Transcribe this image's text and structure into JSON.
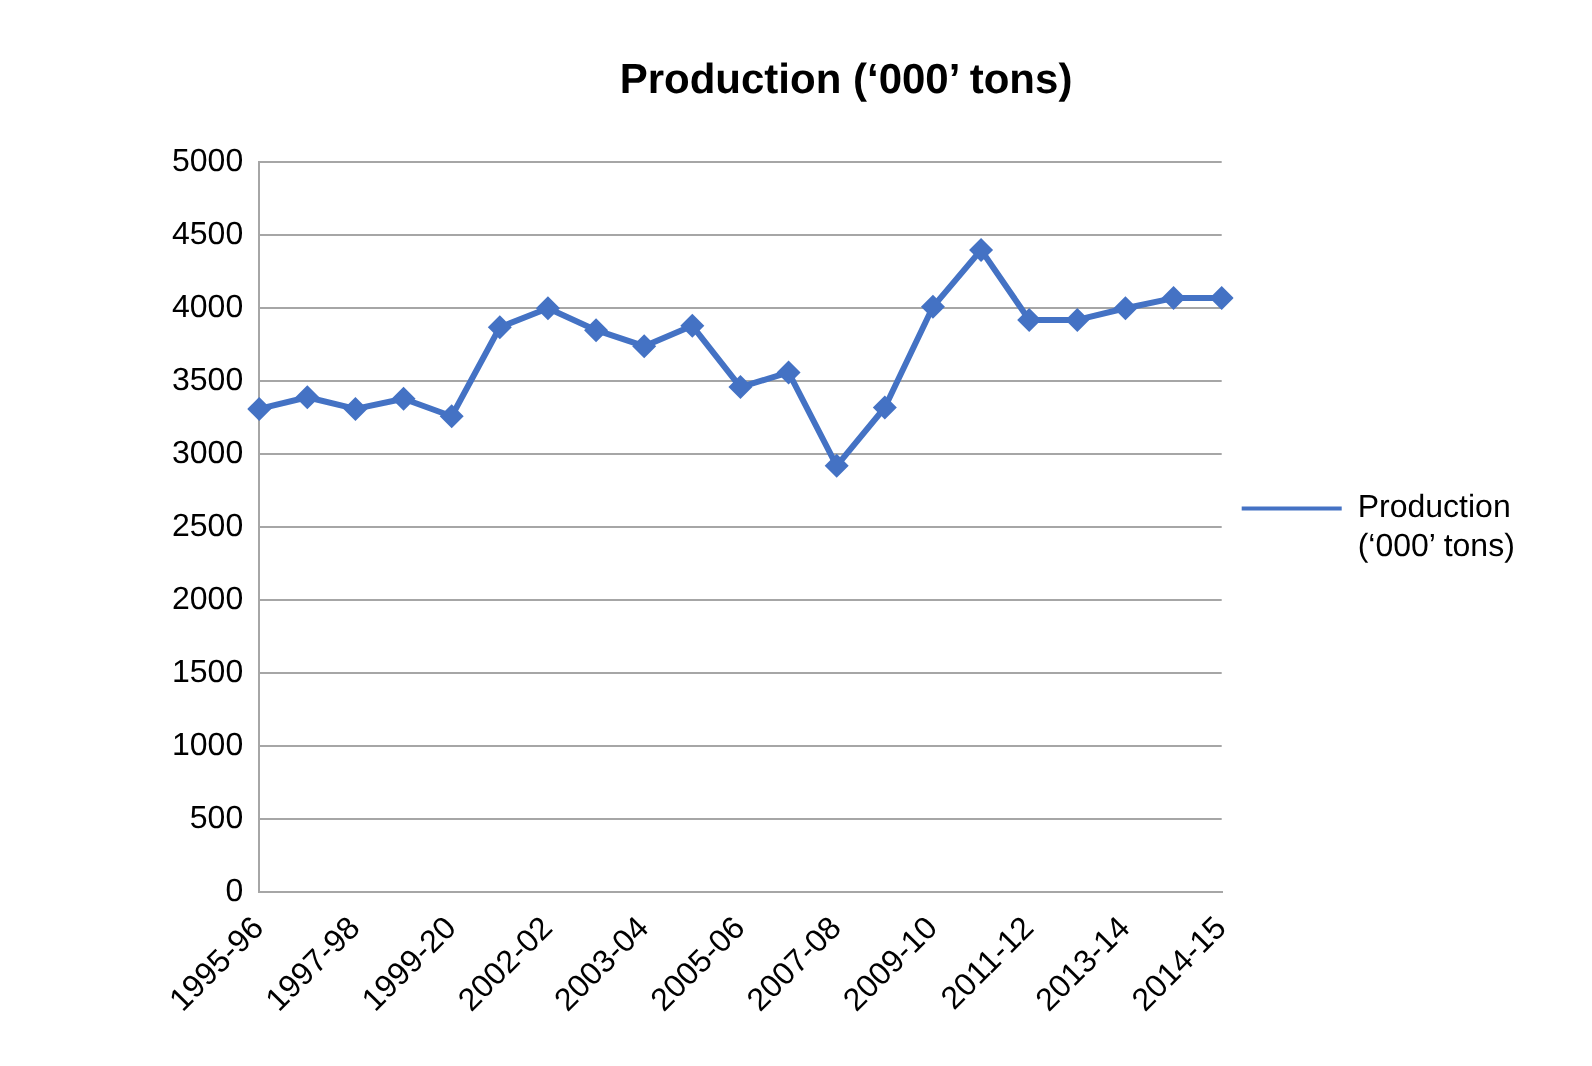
{
  "chart_data": {
    "type": "line",
    "title": "Production (‘000’ tons)",
    "categories": [
      "1995-96",
      null,
      "1997-98",
      null,
      "1999-20",
      null,
      "2002-02",
      null,
      "2003-04",
      null,
      "2005-06",
      null,
      "2007-08",
      null,
      "2009-10",
      null,
      "2011-12",
      null,
      "2013-14",
      null,
      "2014-15"
    ],
    "series": [
      {
        "name": "Production (‘000’ tons)",
        "color": "#4472c4",
        "values": [
          3310,
          3390,
          3310,
          3380,
          3260,
          3870,
          4000,
          3850,
          3740,
          3880,
          3460,
          3560,
          2920,
          3320,
          4010,
          4400,
          3920,
          3920,
          4000,
          4070,
          4070
        ]
      }
    ],
    "ylim": [
      0,
      5000
    ],
    "yticks": [
      0,
      500,
      1000,
      1500,
      2000,
      2500,
      3000,
      3500,
      4000,
      4500,
      5000
    ],
    "grid": "y",
    "legend": "right",
    "marker": "diamond",
    "line_style": "solid"
  }
}
